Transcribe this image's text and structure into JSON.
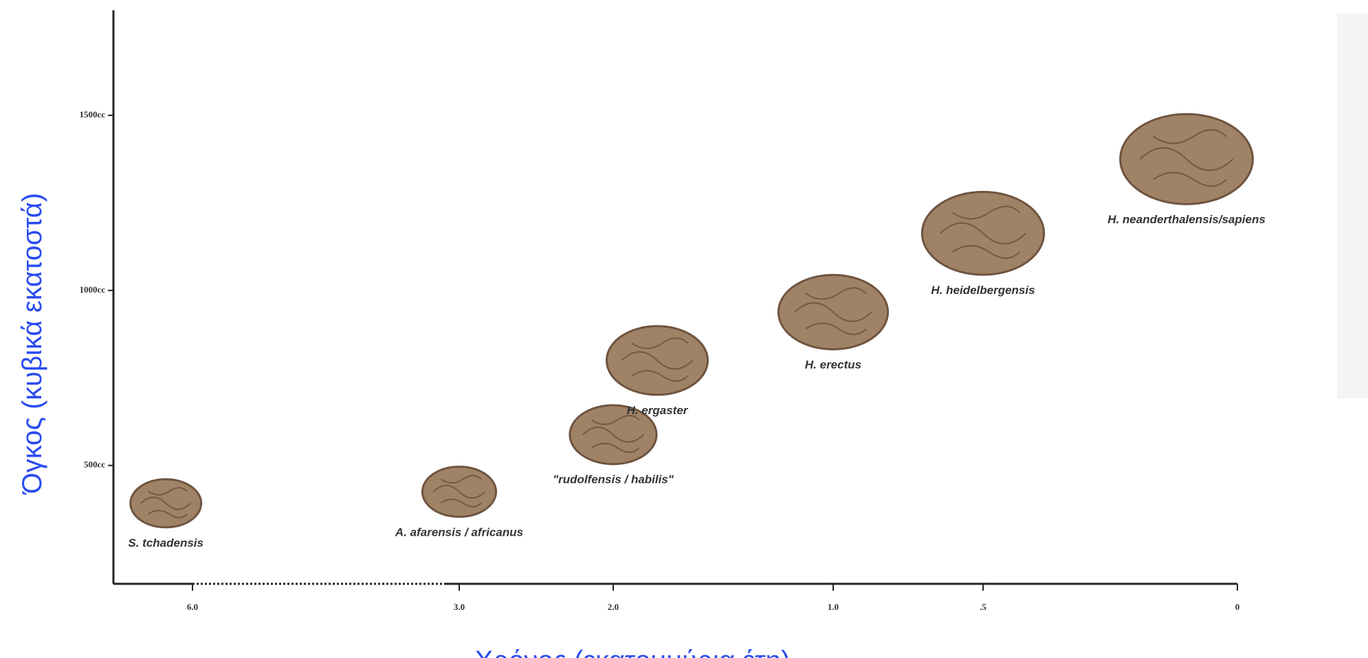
{
  "chart_data": {
    "type": "scatter",
    "y_label": "Όγκος (κυβικά εκατοστά)",
    "x_label": "Χρόνος (εκατομμύρια έτη)",
    "points": [
      {
        "name": "S. tchadensis",
        "x": 6.3,
        "y": 392
      },
      {
        "name": "A. afarensis / africanus",
        "x": 3.0,
        "y": 425
      },
      {
        "name": "\"rudolfensis / habilis\"",
        "x": 2.0,
        "y": 588
      },
      {
        "name": "H. ergaster",
        "x": 1.8,
        "y": 800
      },
      {
        "name": "H. erectus",
        "x": 1.0,
        "y": 938
      },
      {
        "name": "H. heidelbergensis",
        "x": 0.5,
        "y": 1163
      },
      {
        "name": "H. neanderthalensis/sapiens",
        "x": 0.1,
        "y": 1375
      }
    ],
    "color": "#a08266",
    "ylim": [
      162,
      1800
    ],
    "yticks": [
      {
        "value": 500,
        "label": "500cc"
      },
      {
        "value": 1000,
        "label": "1000cc"
      },
      {
        "value": 1500,
        "label": "1500cc"
      }
    ],
    "xticks": [
      {
        "value": 6,
        "label": "6.0"
      },
      {
        "value": 3,
        "label": "3.0"
      },
      {
        "value": 2,
        "label": "2.0"
      },
      {
        "value": 1,
        "label": "1.0"
      },
      {
        "value": 0.5,
        "label": ".5"
      },
      0
    ]
  }
}
